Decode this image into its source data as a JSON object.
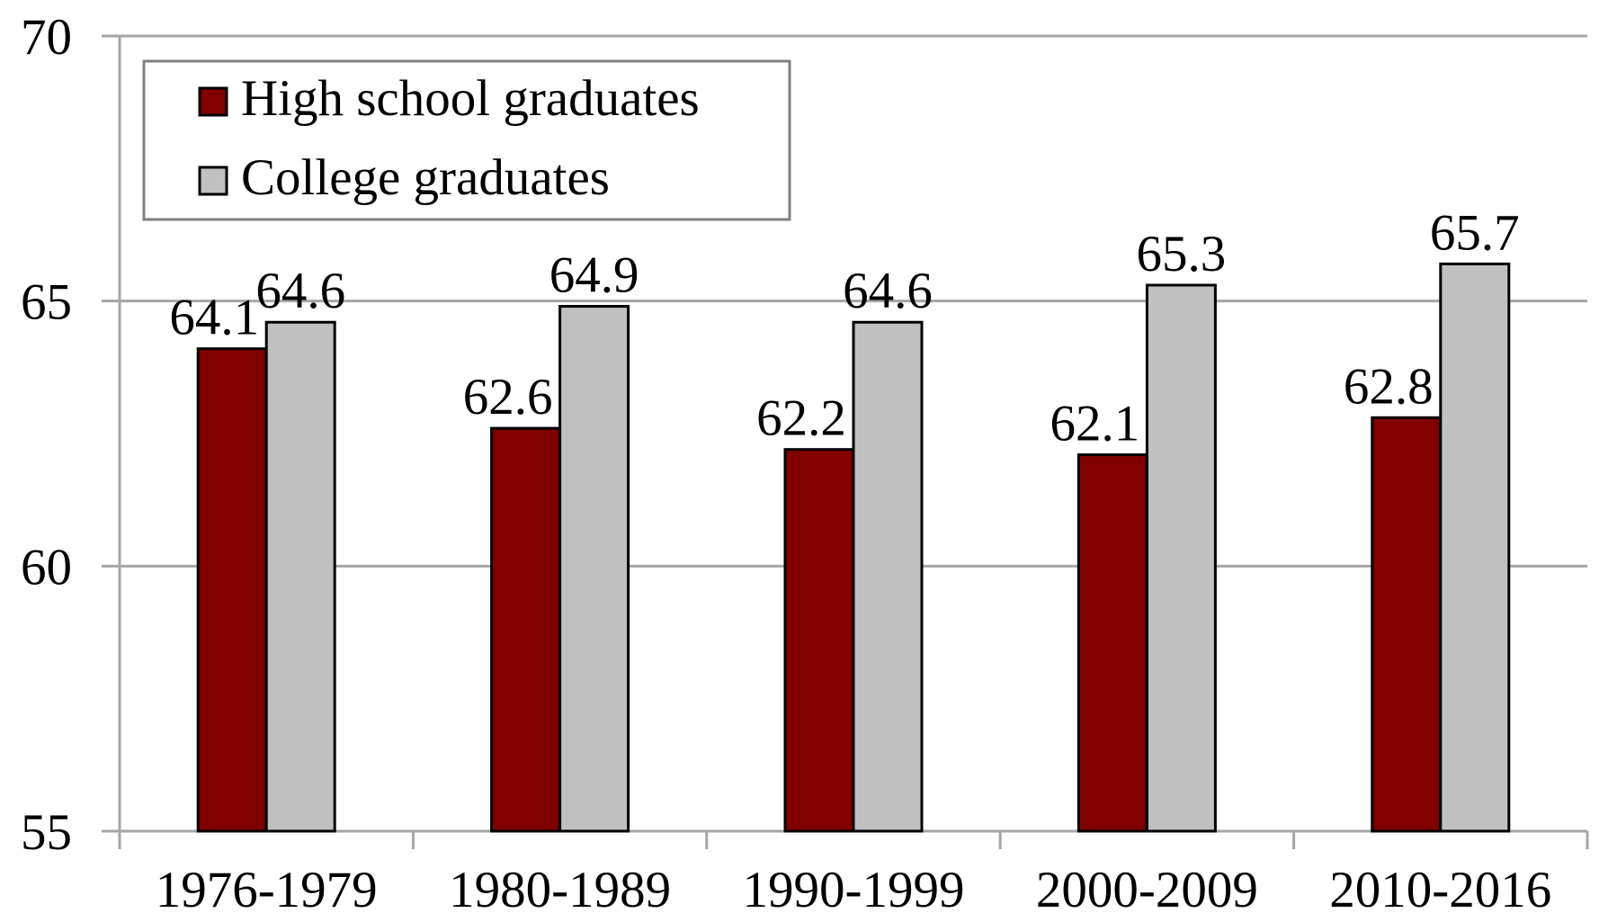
{
  "chart_data": {
    "type": "bar",
    "categories": [
      "1976-1979",
      "1980-1989",
      "1990-1999",
      "2000-2009",
      "2010-2016"
    ],
    "series": [
      {
        "name": "High school graduates",
        "values": [
          64.1,
          62.6,
          62.2,
          62.1,
          62.8
        ],
        "labels": [
          "64.1",
          "62.6",
          "62.2",
          "62.1",
          "62.8"
        ],
        "color": "#800000"
      },
      {
        "name": "College graduates",
        "values": [
          64.6,
          64.9,
          64.6,
          65.3,
          65.7
        ],
        "labels": [
          "64.6",
          "64.9",
          "64.6",
          "65.3",
          "65.7"
        ],
        "color": "#c0c0c0"
      }
    ],
    "ylim": [
      55,
      70
    ],
    "yticks": [
      55,
      60,
      65,
      70
    ],
    "ytick_labels": [
      "55",
      "60",
      "65",
      "70"
    ],
    "title": "",
    "xlabel": "",
    "ylabel": "",
    "grid": true,
    "legend_position": "top-left",
    "gridline_color": "#a6a6a6",
    "bar_outline_color": "#000000"
  }
}
